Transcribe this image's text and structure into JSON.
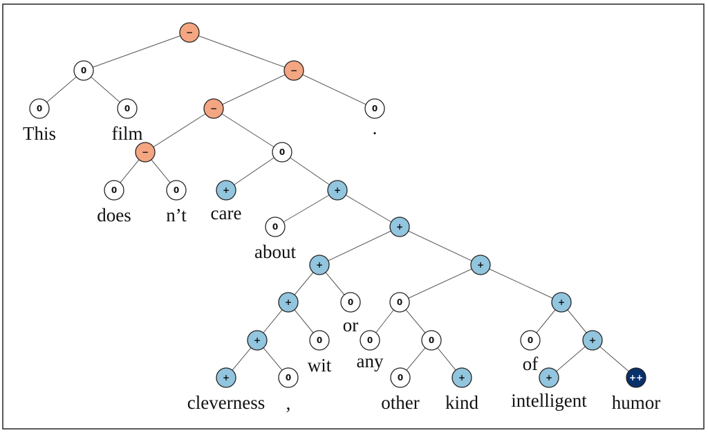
{
  "nodes": [
    {
      "label": "−",
      "color": "#f4a582"
    },
    {
      "label": "0",
      "color": "#ffffff"
    },
    {
      "label": "0",
      "color": "#ffffff",
      "word": "This"
    },
    {
      "label": "0",
      "color": "#ffffff",
      "word": "film"
    },
    {
      "label": "−",
      "color": "#f4a582"
    },
    {
      "label": "−",
      "color": "#f4a582"
    },
    {
      "label": "0",
      "color": "#ffffff",
      "word": "."
    },
    {
      "label": "−",
      "color": "#f4a582"
    },
    {
      "label": "0",
      "color": "#ffffff",
      "word": "does"
    },
    {
      "label": "0",
      "color": "#ffffff",
      "word": "n’t"
    },
    {
      "label": "0",
      "color": "#ffffff"
    },
    {
      "label": "+",
      "color": "#92c5de",
      "word": "care"
    },
    {
      "label": "+",
      "color": "#92c5de"
    },
    {
      "label": "0",
      "color": "#ffffff",
      "word": "about"
    },
    {
      "label": "+",
      "color": "#92c5de"
    },
    {
      "label": "+",
      "color": "#92c5de"
    },
    {
      "label": "+",
      "color": "#92c5de"
    },
    {
      "label": "+",
      "color": "#92c5de"
    },
    {
      "label": "0",
      "color": "#ffffff",
      "word": "or"
    },
    {
      "label": "0",
      "color": "#ffffff"
    },
    {
      "label": "+",
      "color": "#92c5de"
    },
    {
      "label": "+",
      "color": "#92c5de"
    },
    {
      "label": "0",
      "color": "#ffffff",
      "word": "wit"
    },
    {
      "label": "0",
      "color": "#ffffff",
      "word": "any"
    },
    {
      "label": "0",
      "color": "#ffffff"
    },
    {
      "label": "0",
      "color": "#ffffff",
      "word": "of"
    },
    {
      "label": "+",
      "color": "#92c5de"
    },
    {
      "label": "+",
      "color": "#92c5de",
      "word": "cleverness"
    },
    {
      "label": "0",
      "color": "#ffffff",
      "word": ","
    },
    {
      "label": "0",
      "color": "#ffffff",
      "word": "other"
    },
    {
      "label": "+",
      "color": "#92c5de",
      "word": "kind"
    },
    {
      "label": "+",
      "color": "#92c5de",
      "word": "intelligent"
    },
    {
      "label": "++",
      "color": "#08306b",
      "word": "humor"
    }
  ]
}
